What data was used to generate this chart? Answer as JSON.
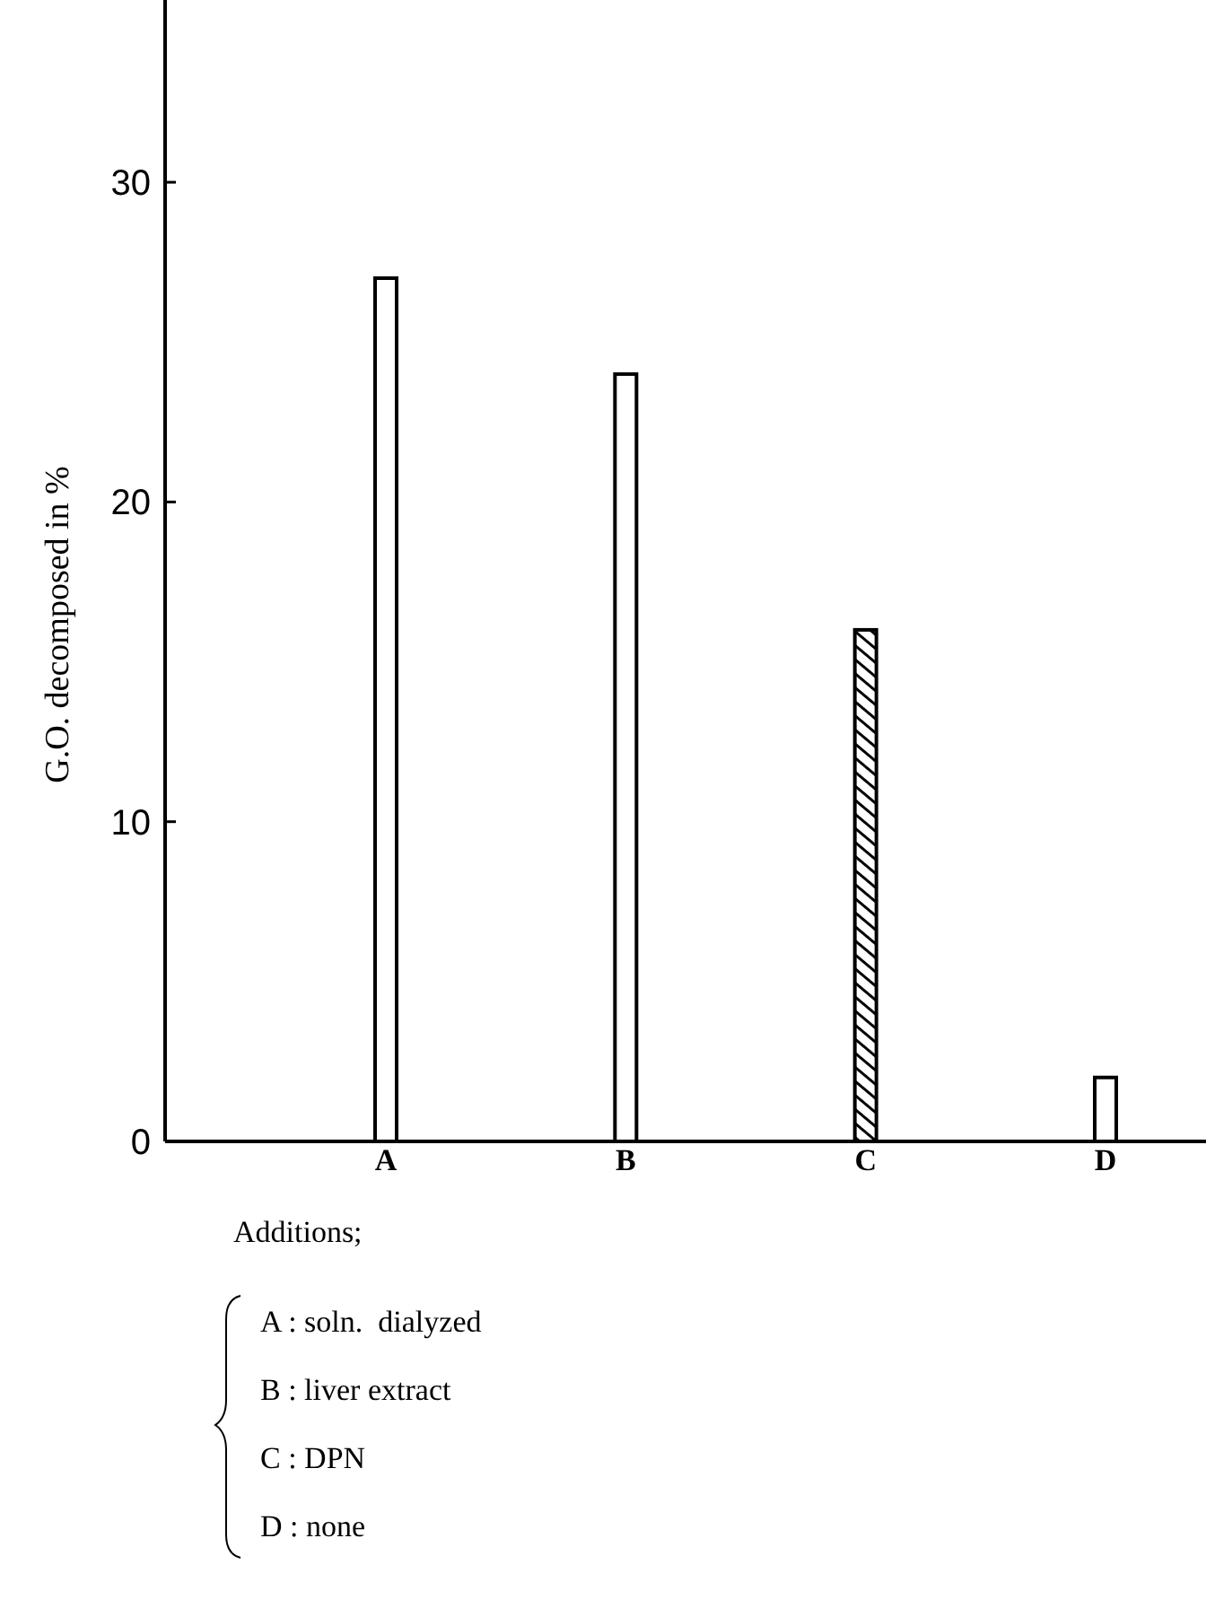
{
  "chart_data": {
    "type": "bar",
    "ylabel": "G.O. decomposed in %",
    "categories": [
      "A",
      "B",
      "C",
      "D"
    ],
    "values": [
      27,
      24,
      16,
      2
    ],
    "colors": [
      "#ffffff",
      "#ffffff",
      "#000000",
      "#ffffff"
    ],
    "ylim": [
      0,
      35.7
    ],
    "yticks": [
      0,
      10,
      20,
      30
    ],
    "grid": false,
    "annotations": [
      "Additions;",
      "A : soln.  dialyzed",
      "B : liver extract",
      "C : DPN",
      "D : none"
    ]
  }
}
